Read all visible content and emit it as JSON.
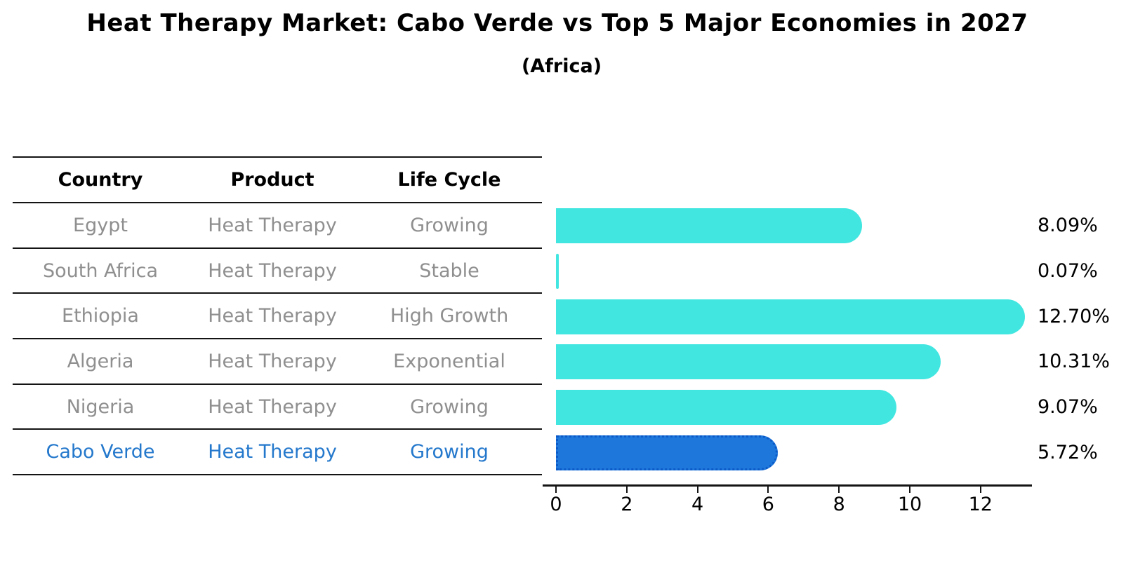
{
  "title": "Heat Therapy Market: Cabo Verde vs Top 5 Major Economies in 2027",
  "subtitle": "(Africa)",
  "table": {
    "headers": [
      "Country",
      "Product",
      "Life Cycle"
    ],
    "rows": [
      {
        "country": "Egypt",
        "product": "Heat Therapy",
        "life_cycle": "Growing",
        "highlight": false
      },
      {
        "country": "South Africa",
        "product": "Heat Therapy",
        "life_cycle": "Stable",
        "highlight": false
      },
      {
        "country": "Ethiopia",
        "product": "Heat Therapy",
        "life_cycle": "High Growth",
        "highlight": false
      },
      {
        "country": "Algeria",
        "product": "Heat Therapy",
        "life_cycle": "Exponential",
        "highlight": false
      },
      {
        "country": "Nigeria",
        "product": "Heat Therapy",
        "life_cycle": "Growing",
        "highlight": false
      },
      {
        "country": "Cabo Verde",
        "product": "Heat Therapy",
        "life_cycle": "Growing",
        "highlight": true
      }
    ]
  },
  "chart_data": {
    "type": "bar",
    "orientation": "horizontal",
    "title": "Heat Therapy Market: Cabo Verde vs Top 5 Major Economies in 2027",
    "subtitle": "(Africa)",
    "categories": [
      "Egypt",
      "South Africa",
      "Ethiopia",
      "Algeria",
      "Nigeria",
      "Cabo Verde"
    ],
    "values": [
      8.09,
      0.07,
      12.7,
      10.31,
      9.07,
      5.72
    ],
    "value_labels": [
      "8.09%",
      "0.07%",
      "12.70%",
      "10.31%",
      "9.07%",
      "5.72%"
    ],
    "x_ticks": [
      0,
      2,
      4,
      6,
      8,
      10,
      12
    ],
    "xlim": [
      0,
      13.4
    ],
    "xlabel": "",
    "ylabel": "",
    "grid": false,
    "legend": false,
    "bar_color": "#42e6e0",
    "highlight_index": 5,
    "highlight_bar_color": "#1e78dc",
    "highlight_bar_border_color": "#0c5ac8",
    "highlight_text_color": "#2478cc",
    "row_text_color": "#8f8f8f",
    "axis_color": "#141414"
  }
}
